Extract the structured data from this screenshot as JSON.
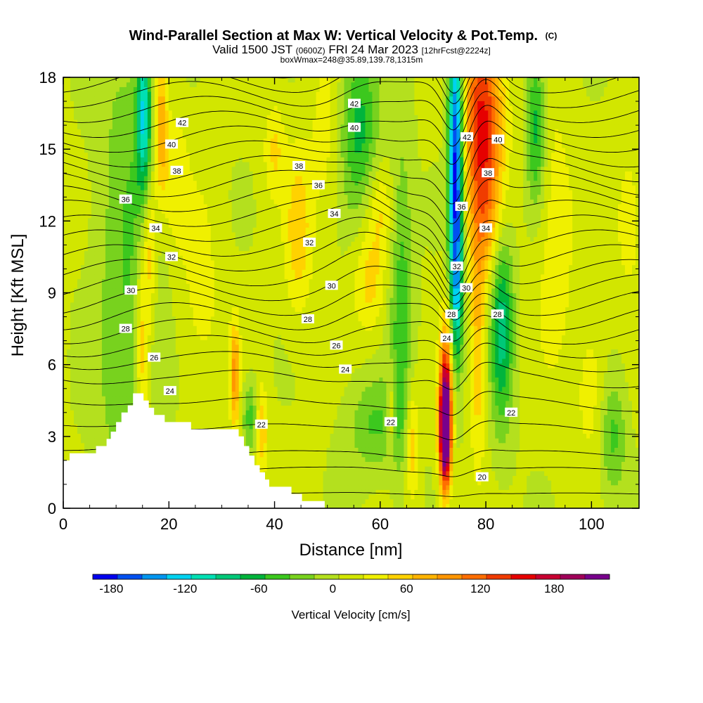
{
  "chart_data": {
    "type": "heatmap",
    "title": "Wind-Parallel Section at Max W: Vertical Velocity & Pot.Temp.",
    "title_suffix": "(C)",
    "subtitle": {
      "valid_prefix": "Valid 1500 JST",
      "utc": "(0600Z)",
      "date": "FRI 24 Mar 2023",
      "forecast": "[12hrFcst@2224z]"
    },
    "box_info": "boxWmax=248@35.89,139.78,1315m",
    "xlabel": "Distance [nm]",
    "ylabel": "Height [Kft MSL]",
    "xlim": [
      0,
      109
    ],
    "ylim": [
      0,
      18
    ],
    "x_ticks": [
      0,
      20,
      40,
      60,
      80,
      100
    ],
    "y_ticks": [
      0,
      3,
      6,
      9,
      12,
      15,
      18
    ],
    "colorbar": {
      "label": "Vertical Velocity [cm/s]",
      "ticks": [
        -180,
        -120,
        -60,
        0,
        60,
        120,
        180
      ],
      "min": -195,
      "max": 225,
      "step": 20,
      "colors": [
        "#0000ee",
        "#0050f0",
        "#0096f0",
        "#00d2f0",
        "#00e0b4",
        "#00c878",
        "#00b43c",
        "#3cc81e",
        "#78d21e",
        "#b4e01e",
        "#d2e600",
        "#f0f000",
        "#ffd200",
        "#ffb400",
        "#ff9600",
        "#ff6e00",
        "#f03c00",
        "#e60000",
        "#c80032",
        "#a0005a",
        "#78008c"
      ]
    },
    "terrain_kft": [
      [
        0,
        2.0
      ],
      [
        1.2,
        2.0
      ],
      [
        1.2,
        2.3
      ],
      [
        6.2,
        2.3
      ],
      [
        6.2,
        2.6
      ],
      [
        8.2,
        2.6
      ],
      [
        8.2,
        2.9
      ],
      [
        9.0,
        2.9
      ],
      [
        9.0,
        3.2
      ],
      [
        10.0,
        3.2
      ],
      [
        10.0,
        3.6
      ],
      [
        11.0,
        3.6
      ],
      [
        11.0,
        4.0
      ],
      [
        12.2,
        4.0
      ],
      [
        12.2,
        4.3
      ],
      [
        13.2,
        4.3
      ],
      [
        13.2,
        4.8
      ],
      [
        15.2,
        4.8
      ],
      [
        15.2,
        4.5
      ],
      [
        16.2,
        4.5
      ],
      [
        16.2,
        4.2
      ],
      [
        17.2,
        4.2
      ],
      [
        17.2,
        3.9
      ],
      [
        19.2,
        3.9
      ],
      [
        19.2,
        3.6
      ],
      [
        24.2,
        3.6
      ],
      [
        24.2,
        3.3
      ],
      [
        33.2,
        3.3
      ],
      [
        33.2,
        3.0
      ],
      [
        34.2,
        3.0
      ],
      [
        34.2,
        2.6
      ],
      [
        35.2,
        2.6
      ],
      [
        35.2,
        2.2
      ],
      [
        36.2,
        2.2
      ],
      [
        36.2,
        1.8
      ],
      [
        37.2,
        1.8
      ],
      [
        37.2,
        1.5
      ],
      [
        38.2,
        1.5
      ],
      [
        38.2,
        1.2
      ],
      [
        39.0,
        1.2
      ],
      [
        39.0,
        0.9
      ],
      [
        43.2,
        0.9
      ],
      [
        43.2,
        0.6
      ],
      [
        45.2,
        0.6
      ],
      [
        45.2,
        0.3
      ],
      [
        49.5,
        0.3
      ],
      [
        49.5,
        0.0
      ]
    ],
    "w_features": [
      {
        "x": 12.5,
        "z": 9,
        "amp": -45,
        "sx": 6,
        "sz": 12
      },
      {
        "x": 15,
        "z": 6.8,
        "amp": 70,
        "sx": 1.4,
        "sz": 4.5
      },
      {
        "x": 16.5,
        "z": 11,
        "amp": 60,
        "sx": 1.3,
        "sz": 3
      },
      {
        "x": 15.2,
        "z": 16.5,
        "amp": -110,
        "sx": 1.3,
        "sz": 3.2
      },
      {
        "x": 18.5,
        "z": 16,
        "amp": 80,
        "sx": 1.2,
        "sz": 3
      },
      {
        "x": 21,
        "z": 14,
        "amp": 35,
        "sx": 2.5,
        "sz": 3
      },
      {
        "x": 26,
        "z": 9,
        "amp": 25,
        "sx": 4,
        "sz": 5
      },
      {
        "x": 32.5,
        "z": 5.5,
        "amp": 85,
        "sx": 0.9,
        "sz": 2.2
      },
      {
        "x": 35.5,
        "z": 3.8,
        "amp": -55,
        "sx": 1.5,
        "sz": 1.5
      },
      {
        "x": 37.5,
        "z": 3.3,
        "amp": 60,
        "sx": 1.2,
        "sz": 1.8
      },
      {
        "x": 40,
        "z": 15,
        "amp": 40,
        "sx": 2,
        "sz": 2
      },
      {
        "x": 44.5,
        "z": 11.5,
        "amp": 50,
        "sx": 2.5,
        "sz": 3.5
      },
      {
        "x": 49.5,
        "z": 15.5,
        "amp": 25,
        "sx": 3,
        "sz": 4
      },
      {
        "x": 56,
        "z": 16,
        "amp": -70,
        "sx": 3.5,
        "sz": 3.5
      },
      {
        "x": 58,
        "z": 9.5,
        "amp": 45,
        "sx": 3,
        "sz": 2.2
      },
      {
        "x": 60,
        "z": 12.5,
        "amp": 35,
        "sx": 2.5,
        "sz": 1.8
      },
      {
        "x": 64,
        "z": 8.5,
        "amp": -55,
        "sx": 2.2,
        "sz": 7
      },
      {
        "x": 59,
        "z": 3.5,
        "amp": -45,
        "sx": 5,
        "sz": 2
      },
      {
        "x": 62,
        "z": 4,
        "amp": 55,
        "sx": 0.8,
        "sz": 1.8
      },
      {
        "x": 66,
        "z": 2.8,
        "amp": 60,
        "sx": 1.2,
        "sz": 2.5
      },
      {
        "x": 72.3,
        "z": 3.2,
        "amp": 270,
        "sx": 1.1,
        "sz": 2.3
      },
      {
        "x": 72.5,
        "z": 5.5,
        "amp": 90,
        "sx": 1.2,
        "sz": 3
      },
      {
        "x": 74.3,
        "z": 15,
        "amp": -200,
        "sx": 1.4,
        "sz": 6
      },
      {
        "x": 74.5,
        "z": 9,
        "amp": -80,
        "sx": 1.2,
        "sz": 3.5
      },
      {
        "x": 79.3,
        "z": 16.5,
        "amp": 140,
        "sx": 3.8,
        "sz": 4
      },
      {
        "x": 80.5,
        "z": 12,
        "amp": 60,
        "sx": 3.5,
        "sz": 3
      },
      {
        "x": 78.5,
        "z": 7,
        "amp": 60,
        "sx": 1.5,
        "sz": 5
      },
      {
        "x": 83,
        "z": 8,
        "amp": -95,
        "sx": 2.2,
        "sz": 4.5
      },
      {
        "x": 89.5,
        "z": 16,
        "amp": -75,
        "sx": 1.8,
        "sz": 3.5
      },
      {
        "x": 93,
        "z": 11.5,
        "amp": 30,
        "sx": 4,
        "sz": 6
      },
      {
        "x": 100,
        "z": 5,
        "amp": 30,
        "sx": 3,
        "sz": 3
      },
      {
        "x": 104,
        "z": 3,
        "amp": -50,
        "sx": 2.5,
        "sz": 2.5
      },
      {
        "x": 107,
        "z": 12,
        "amp": 40,
        "sx": 2,
        "sz": 2.5
      }
    ],
    "contour_labels": [
      {
        "text": "42",
        "x": 22.5,
        "z": 16.1
      },
      {
        "text": "40",
        "x": 20.5,
        "z": 15.2
      },
      {
        "text": "38",
        "x": 21.5,
        "z": 14.1
      },
      {
        "text": "36",
        "x": 11.8,
        "z": 12.9
      },
      {
        "text": "34",
        "x": 17.5,
        "z": 11.7
      },
      {
        "text": "32",
        "x": 20.5,
        "z": 10.5
      },
      {
        "text": "30",
        "x": 12.8,
        "z": 9.1
      },
      {
        "text": "28",
        "x": 11.8,
        "z": 7.5
      },
      {
        "text": "26",
        "x": 17.2,
        "z": 6.3
      },
      {
        "text": "24",
        "x": 20.2,
        "z": 4.9
      },
      {
        "text": "22",
        "x": 37.5,
        "z": 3.5
      },
      {
        "text": "42",
        "x": 55.1,
        "z": 16.9
      },
      {
        "text": "40",
        "x": 55.1,
        "z": 15.9
      },
      {
        "text": "38",
        "x": 44.6,
        "z": 14.3
      },
      {
        "text": "36",
        "x": 48.3,
        "z": 13.5
      },
      {
        "text": "34",
        "x": 51.3,
        "z": 12.3
      },
      {
        "text": "32",
        "x": 46.6,
        "z": 11.1
      },
      {
        "text": "30",
        "x": 50.8,
        "z": 9.3
      },
      {
        "text": "28",
        "x": 46.3,
        "z": 7.9
      },
      {
        "text": "26",
        "x": 51.7,
        "z": 6.8
      },
      {
        "text": "24",
        "x": 53.4,
        "z": 5.8
      },
      {
        "text": "22",
        "x": 62.0,
        "z": 3.6
      },
      {
        "text": "42",
        "x": 76.4,
        "z": 15.5
      },
      {
        "text": "40",
        "x": 82.3,
        "z": 15.4
      },
      {
        "text": "38",
        "x": 80.4,
        "z": 14.0
      },
      {
        "text": "36",
        "x": 75.4,
        "z": 12.6
      },
      {
        "text": "34",
        "x": 80.0,
        "z": 11.7
      },
      {
        "text": "32",
        "x": 74.5,
        "z": 10.1
      },
      {
        "text": "30",
        "x": 76.3,
        "z": 9.2
      },
      {
        "text": "28",
        "x": 73.5,
        "z": 8.1
      },
      {
        "text": "28",
        "x": 82.2,
        "z": 8.1
      },
      {
        "text": "24",
        "x": 72.6,
        "z": 7.1
      },
      {
        "text": "22",
        "x": 84.8,
        "z": 4.0
      },
      {
        "text": "20",
        "x": 79.3,
        "z": 1.3
      }
    ]
  }
}
